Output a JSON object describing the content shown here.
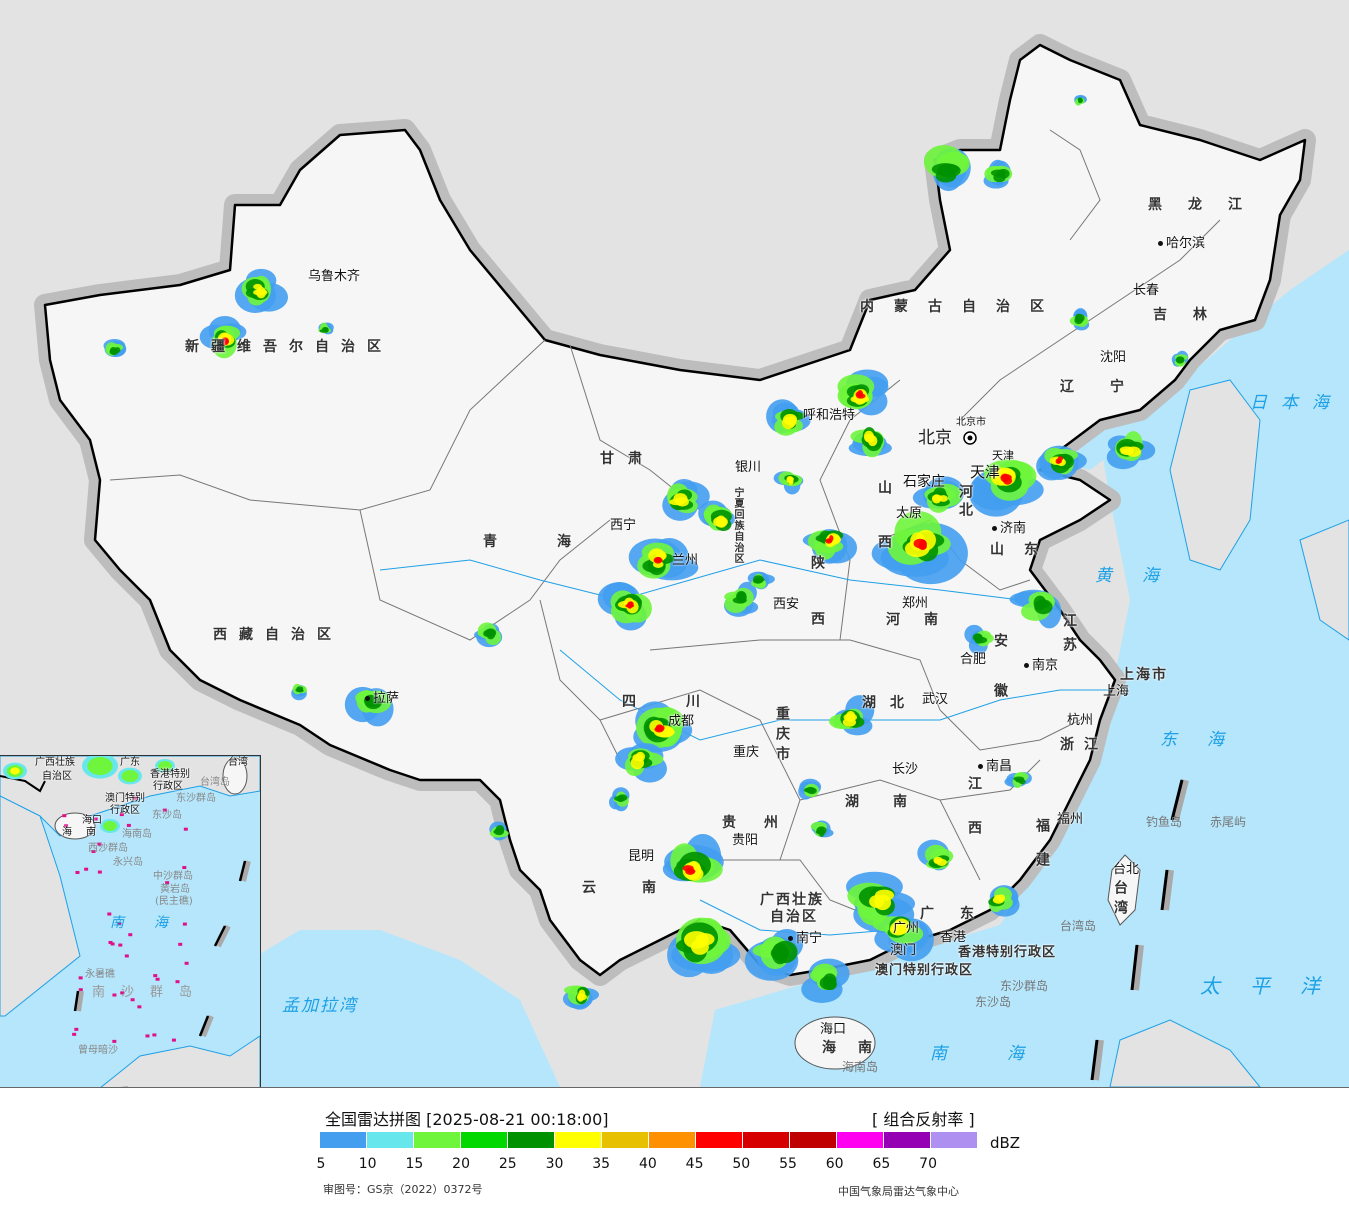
{
  "map": {
    "provinces": {
      "xinjiang": "新疆维吾尔自治区",
      "xizang": "西藏自治区",
      "qinghai": "青海",
      "gansu": "甘肃",
      "neimenggu": "内蒙古自治区",
      "ningxia": "宁夏回族自治区",
      "heilongjiang": "黑龙江",
      "jilin": "吉林",
      "liaoning": "辽宁",
      "hebei": "河北",
      "shanxi": "山西",
      "shandong": "山东",
      "shaanxi": "陕西",
      "henan": "河南",
      "jiangsu": "江苏",
      "anhui": "安徽",
      "shanghai": "上海市",
      "zhejiang": "浙江",
      "sichuan": "四川",
      "chongqing": "重庆市",
      "hubei": "湖北",
      "hunan": "湖南",
      "jiangxi": "江西",
      "fujian": "福建",
      "guizhou": "贵州",
      "yunnan": "云南",
      "guangxi_1": "广西壮族",
      "guangxi_2": "自治区",
      "guangdong": "广东",
      "taiwan": "台湾",
      "hainan": "海南",
      "hongkong": "香港特别行政区",
      "macau": "澳门特别行政区",
      "beijing": "北京",
      "beijing_city": "北京市",
      "tianjin": "天津"
    },
    "cities": {
      "urumqi": "乌鲁木齐",
      "lhasa": "拉萨",
      "xining": "西宁",
      "lanzhou": "兰州",
      "yinchuan": "银川",
      "hohhot": "呼和浩特",
      "tianjin": "天津",
      "shijiazhuang": "石家庄",
      "taiyuan": "太原",
      "jinan": "济南",
      "zhengzhou": "郑州",
      "xian": "西安",
      "nanjing": "南京",
      "hefei": "合肥",
      "shanghai": "上海",
      "hangzhou": "杭州",
      "wuhan": "武汉",
      "changsha": "长沙",
      "nanchang": "南昌",
      "fuzhou": "福州",
      "taipei": "台北",
      "chongqing": "重庆",
      "chengdu": "成都",
      "guiyang": "贵阳",
      "kunming": "昆明",
      "nanning": "南宁",
      "guangzhou": "广州",
      "macau": "澳门",
      "hongkong": "香港",
      "haikou": "海口",
      "shenyang": "沈阳",
      "changchun": "长春",
      "harbin": "哈尔滨"
    },
    "seas": {
      "japan_sea": "日本海",
      "yellow_sea": "黄海",
      "east_sea": "东海",
      "pacific": "太平洋",
      "south_sea": "南海",
      "bengal": "孟加拉湾"
    },
    "islands": {
      "diaoyu": "钓鱼岛",
      "chiwei": "赤尾屿",
      "taiwan_island": "台湾岛",
      "dongsha_islands": "东沙群岛",
      "dongsha": "东沙岛",
      "hainan_island": "海南岛"
    },
    "inset": {
      "guangxi": "广西壮族",
      "guangxi2": "自治区",
      "guangdong": "广东",
      "taiwan": "台湾",
      "hk": "香港特别",
      "hk2": "行政区",
      "macau": "澳门特别",
      "macau2": "行政区",
      "taiwan_island": "台湾岛",
      "dongsha_islands": "东沙群岛",
      "dongsha": "东沙岛",
      "haikou": "海口",
      "hainan": "海南",
      "hainan_island": "海南岛",
      "xisha": "西沙群岛",
      "yongxing": "永兴岛",
      "zhongsha": "中沙群岛",
      "huangyan": "黄岩岛",
      "minzhu": "(民主礁)",
      "south_sea": "南海",
      "yongshu": "永暑礁",
      "nansha": "南沙群岛",
      "zengmu": "曾母暗沙"
    }
  },
  "legend": {
    "title": "全国雷达拼图 [2025-08-21 00:18:00]",
    "product": "[ 组合反射率 ]",
    "unit": "dBZ",
    "ticks": [
      "5",
      "10",
      "15",
      "20",
      "25",
      "30",
      "35",
      "40",
      "45",
      "50",
      "55",
      "60",
      "65",
      "70"
    ],
    "colors": [
      "#439ef0",
      "#67e6ec",
      "#6ff53c",
      "#00d800",
      "#009100",
      "#ffff00",
      "#e7c000",
      "#ff9000",
      "#ff0000",
      "#d60000",
      "#c00000",
      "#ff00f0",
      "#9600b4",
      "#ad90f0"
    ],
    "approval": "审图号：GS京（2022）0372号",
    "org": "中国气象局雷达气象中心"
  },
  "colors": {
    "sea": "#b5e6fb",
    "land_outside": "#e3e3e3",
    "china": "#f6f6f6",
    "border": "#000000",
    "rivers": "#1ea0e6"
  }
}
